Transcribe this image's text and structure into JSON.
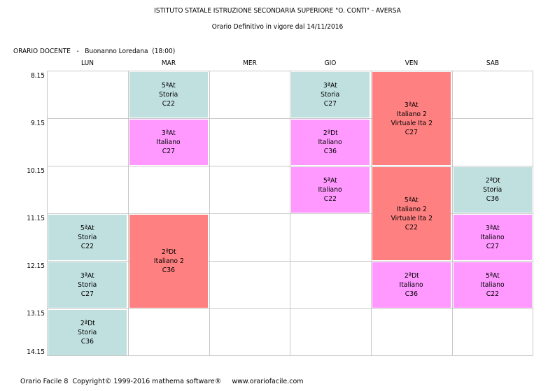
{
  "header": {
    "title": "ISTITUTO STATALE ISTRUZIONE SECONDARIA SUPERIORE \"O. CONTI\" - AVERSA",
    "subtitle": "Orario Definitivo in vigore dal 14/11/2016"
  },
  "teacher_line": "ORARIO DOCENTE   -   Buonanno Loredana  (18:00)",
  "days": [
    "LUN",
    "MAR",
    "MER",
    "GIO",
    "VEN",
    "SAB"
  ],
  "times": [
    "8.15",
    "9.15",
    "10.15",
    "11.15",
    "12.15",
    "13.15",
    "14.15"
  ],
  "colors": {
    "storia": "#c0e0df",
    "italiano": "#ff99ff",
    "italiano2": "#ff8080"
  },
  "lessons": [
    {
      "day": 1,
      "slot": 0,
      "span": 1,
      "cls": "5ªAt",
      "subject": "Storia",
      "room": "C22",
      "type": "storia"
    },
    {
      "day": 3,
      "slot": 0,
      "span": 1,
      "cls": "3ªAt",
      "subject": "Storia",
      "room": "C27",
      "type": "storia"
    },
    {
      "day": 4,
      "slot": 0,
      "span": 2,
      "cls": "3ªAt",
      "subject": "Italiano 2",
      "extra": "Virtuale Ita 2",
      "room": "C27",
      "type": "italiano2"
    },
    {
      "day": 1,
      "slot": 1,
      "span": 1,
      "cls": "3ªAt",
      "subject": "Italiano",
      "room": "C27",
      "type": "italiano"
    },
    {
      "day": 3,
      "slot": 1,
      "span": 1,
      "cls": "2ªDt",
      "subject": "Italiano",
      "room": "C36",
      "type": "italiano"
    },
    {
      "day": 3,
      "slot": 2,
      "span": 1,
      "cls": "5ªAt",
      "subject": "Italiano",
      "room": "C22",
      "type": "italiano"
    },
    {
      "day": 4,
      "slot": 2,
      "span": 2,
      "cls": "5ªAt",
      "subject": "Italiano 2",
      "extra": "Virtuale Ita 2",
      "room": "C22",
      "type": "italiano2"
    },
    {
      "day": 5,
      "slot": 2,
      "span": 1,
      "cls": "2ªDt",
      "subject": "Storia",
      "room": "C36",
      "type": "storia"
    },
    {
      "day": 0,
      "slot": 3,
      "span": 1,
      "cls": "5ªAt",
      "subject": "Storia",
      "room": "C22",
      "type": "storia"
    },
    {
      "day": 1,
      "slot": 3,
      "span": 2,
      "cls": "2ªDt",
      "subject": "Italiano 2",
      "room": "C36",
      "type": "italiano2"
    },
    {
      "day": 5,
      "slot": 3,
      "span": 1,
      "cls": "3ªAt",
      "subject": "Italiano",
      "room": "C27",
      "type": "italiano"
    },
    {
      "day": 0,
      "slot": 4,
      "span": 1,
      "cls": "3ªAt",
      "subject": "Storia",
      "room": "C27",
      "type": "storia"
    },
    {
      "day": 4,
      "slot": 4,
      "span": 1,
      "cls": "2ªDt",
      "subject": "Italiano",
      "room": "C36",
      "type": "italiano"
    },
    {
      "day": 5,
      "slot": 4,
      "span": 1,
      "cls": "5ªAt",
      "subject": "Italiano",
      "room": "C22",
      "type": "italiano"
    },
    {
      "day": 0,
      "slot": 5,
      "span": 1,
      "cls": "2ªDt",
      "subject": "Storia",
      "room": "C36",
      "type": "storia"
    }
  ],
  "footer": "Orario Facile 8  Copyright© 1999-2016 mathema software®     www.orariofacile.com"
}
